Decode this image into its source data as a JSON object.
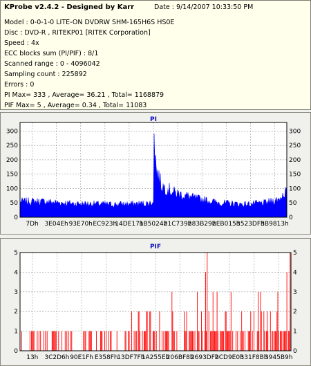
{
  "header": {
    "title": "KProbe v2.4.2 - Designed by Karr",
    "date": "Date : 9/14/2007 10:33:50 PM",
    "lines": [
      "Model : 0-0-1-0 LITE-ON DVDRW SHM-165H6S HS0E",
      "Disc : DVD-R , RITEKP01 [RITEK Corporation]",
      "Speed : 4x",
      "ECC blocks sum (PI/PIF) : 8/1",
      "Scanned range : 0 - 4096042",
      "Sampling count : 225892",
      "Errors : 0",
      "PI Max= 333 , Average= 36.21 , Total= 1168879",
      "PIF Max= 5 , Average= 0.34 , Total= 11083"
    ]
  },
  "chart_data": [
    {
      "type": "area",
      "title": "PI",
      "color": "#0000ff",
      "ylim": [
        0,
        330
      ],
      "yticks": [
        0,
        50,
        100,
        150,
        200,
        250,
        300
      ],
      "xticks": [
        "7Dh",
        "3E04Eh",
        "93E70h",
        "EC923h",
        "14DE17h",
        "1B5024h",
        "21C739h",
        "283B29h",
        "2EB015h",
        "3523DFh",
        "3B9813h"
      ],
      "grid": true,
      "profile": [
        [
          0,
          55
        ],
        [
          0.08,
          55
        ],
        [
          0.2,
          48
        ],
        [
          0.35,
          45
        ],
        [
          0.48,
          48
        ],
        [
          0.5,
          52
        ],
        [
          0.5,
          333
        ],
        [
          0.51,
          170
        ],
        [
          0.53,
          110
        ],
        [
          0.58,
          85
        ],
        [
          0.66,
          65
        ],
        [
          0.75,
          50
        ],
        [
          0.84,
          45
        ],
        [
          0.92,
          50
        ],
        [
          0.97,
          62
        ],
        [
          1,
          95
        ]
      ]
    },
    {
      "type": "bar",
      "title": "PIF",
      "color": "#ff0000",
      "ylim": [
        0,
        5
      ],
      "yticks": [
        0,
        1,
        2,
        3,
        4,
        5
      ],
      "xticks": [
        "13h",
        "3C2D6h",
        "90E1Fh",
        "E358Fh",
        "13DF7Fh",
        "1A255Eh",
        "206BF8h",
        "2693DFh",
        "2CD9E0h",
        "331F8Bh",
        "3945B9h"
      ],
      "grid": true
    }
  ]
}
